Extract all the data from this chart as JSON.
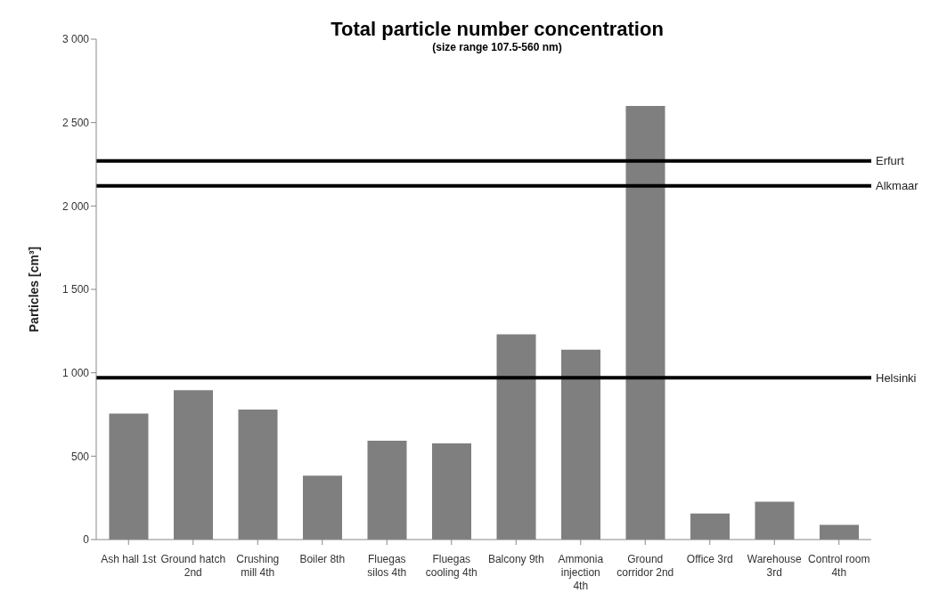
{
  "chart_data": {
    "type": "bar",
    "title": "Total particle number concentration",
    "subtitle": "(size range 107.5-560 nm)",
    "ylabel": "Particles [cm³]",
    "categories": [
      "Ash hall 1st",
      "Ground hatch 2nd",
      "Crushing mill 4th",
      "Boiler 8th",
      "Fluegas silos 4th",
      "Fluegas cooling 4th",
      "Balcony 9th",
      "Ammonia injection 4th",
      "Ground corridor 2nd",
      "Office 3rd",
      "Warehouse 3rd",
      "Control room 4th"
    ],
    "values": [
      756,
      896,
      780,
      383,
      592,
      577,
      1231,
      1139,
      2600,
      156,
      227,
      88
    ],
    "color": "#7f7f7f",
    "ylim": [
      0,
      3000
    ],
    "yticks": [
      0,
      500,
      {
        "value": 1000,
        "label": "1 000"
      },
      {
        "value": 1500,
        "label": "1 500"
      },
      {
        "value": 2000,
        "label": "2 000"
      },
      {
        "value": 2500,
        "label": "2 500"
      },
      {
        "value": 3000,
        "label": "3 000"
      }
    ],
    "ref_lines": [
      {
        "axis": "y",
        "value": 2270,
        "label": "Erfurt",
        "color": "#000000"
      },
      {
        "axis": "y",
        "value": 2120,
        "label": "Alkmaar",
        "color": "#000000"
      },
      {
        "axis": "y",
        "value": 970,
        "label": "Helsinki",
        "color": "#000000"
      }
    ],
    "grid": false,
    "legend": false
  }
}
